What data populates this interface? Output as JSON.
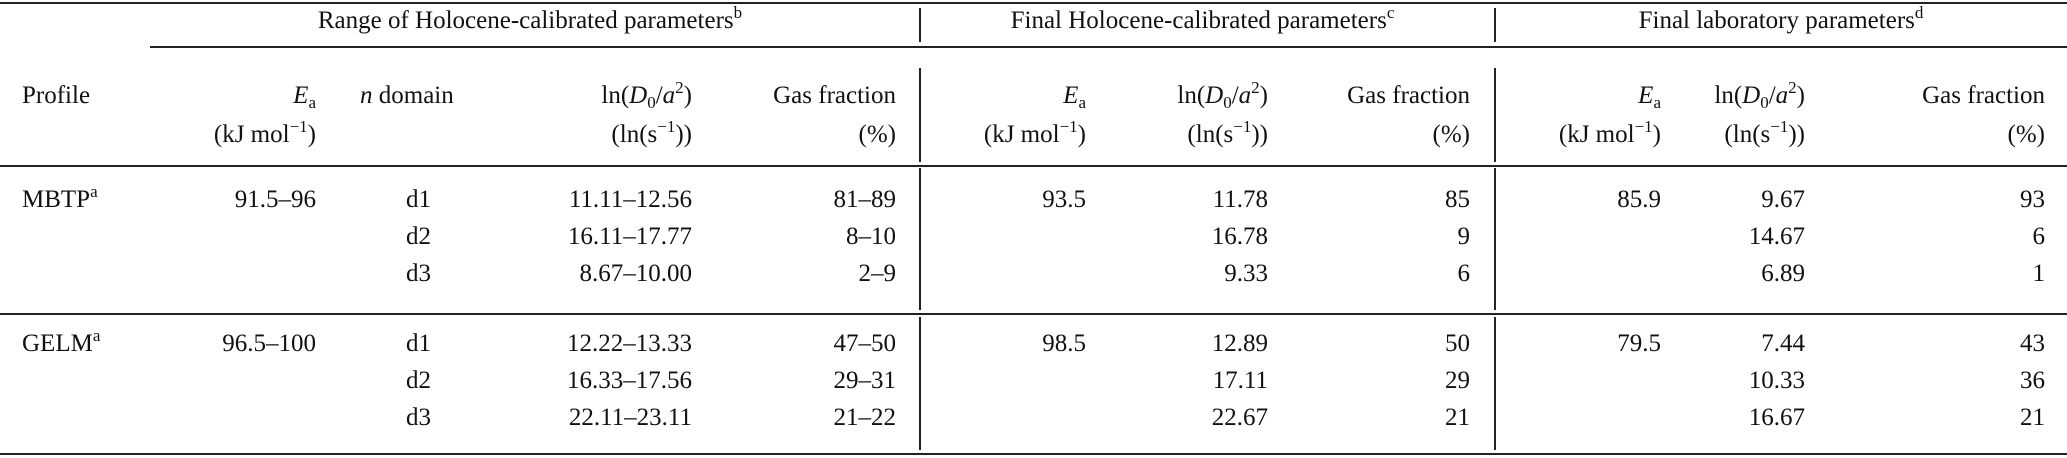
{
  "headers": {
    "group_range": "Range of Holocene-calibrated parameters",
    "group_range_note": "b",
    "group_final_holo": "Final Holocene-calibrated parameters",
    "group_final_holo_note": "c",
    "group_final_lab": "Final laboratory parameters",
    "group_final_lab_note": "d",
    "profile": "Profile",
    "ea_symbol": "E",
    "ea_sub": "a",
    "ea_unit_a": "(kJ mol",
    "ea_unit_exp": "−1",
    "ea_unit_b": ")",
    "n_domain_n": "n",
    "n_domain_rest": " domain",
    "lnd_a": "ln(",
    "lnd_D": "D",
    "lnd_0": "0",
    "lnd_slash": "/",
    "lnd_a2": "a",
    "lnd_2": "2",
    "lnd_close": ")",
    "lnd_unit_a": "(ln(s",
    "lnd_unit_exp": "−1",
    "lnd_unit_b": "))",
    "gas_fraction": "Gas fraction",
    "gas_unit": "(%)"
  },
  "rows": [
    {
      "profile": "MBTP",
      "profile_note": "a",
      "range_ea": "91.5–96",
      "holo_ea": "93.5",
      "lab_ea": "85.9",
      "domains": [
        {
          "domain": "d1",
          "range_lnd": "11.11–12.56",
          "range_gas": "81–89",
          "holo_lnd": "11.78",
          "holo_gas": "85",
          "lab_lnd": "9.67",
          "lab_gas": "93"
        },
        {
          "domain": "d2",
          "range_lnd": "16.11–17.77",
          "range_gas": "8–10",
          "holo_lnd": "16.78",
          "holo_gas": "9",
          "lab_lnd": "14.67",
          "lab_gas": "6"
        },
        {
          "domain": "d3",
          "range_lnd": "8.67–10.00",
          "range_gas": "2–9",
          "holo_lnd": "9.33",
          "holo_gas": "6",
          "lab_lnd": "6.89",
          "lab_gas": "1"
        }
      ]
    },
    {
      "profile": "GELM",
      "profile_note": "a",
      "range_ea": "96.5–100",
      "holo_ea": "98.5",
      "lab_ea": "79.5",
      "domains": [
        {
          "domain": "d1",
          "range_lnd": "12.22–13.33",
          "range_gas": "47–50",
          "holo_lnd": "12.89",
          "holo_gas": "50",
          "lab_lnd": "7.44",
          "lab_gas": "43"
        },
        {
          "domain": "d2",
          "range_lnd": "16.33–17.56",
          "range_gas": "29–31",
          "holo_lnd": "17.11",
          "holo_gas": "29",
          "lab_lnd": "10.33",
          "lab_gas": "36"
        },
        {
          "domain": "d3",
          "range_lnd": "22.11–23.11",
          "range_gas": "21–22",
          "holo_lnd": "22.67",
          "holo_gas": "21",
          "lab_lnd": "16.67",
          "lab_gas": "21"
        }
      ]
    }
  ]
}
